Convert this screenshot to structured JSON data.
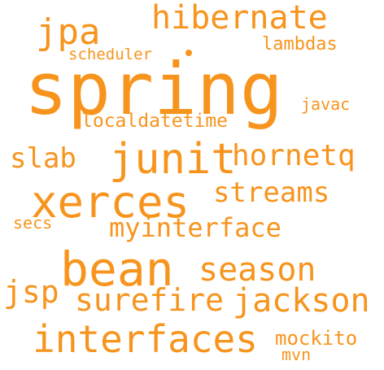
{
  "word_cloud": {
    "color": "#f7941d",
    "background": "#ffffff",
    "words": {
      "hibernate": "hibernate",
      "jpa": "jpa",
      "lambdas": "lambdas",
      "scheduler": "scheduler",
      "spring": "spring",
      "javac": "javac",
      "localdatetime": "localdatetime",
      "slab": "slab",
      "junit": "junit",
      "hornetq": "hornetq",
      "xerces": "xerces",
      "streams": "streams",
      "secs": "secs",
      "myinterface": "myinterface",
      "bean": "bean",
      "season": "season",
      "jsp": "jsp",
      "surefire": "surefire",
      "jackson": "jackson",
      "interfaces": "interfaces",
      "mockito": "mockito",
      "mvn": "mvn"
    }
  }
}
